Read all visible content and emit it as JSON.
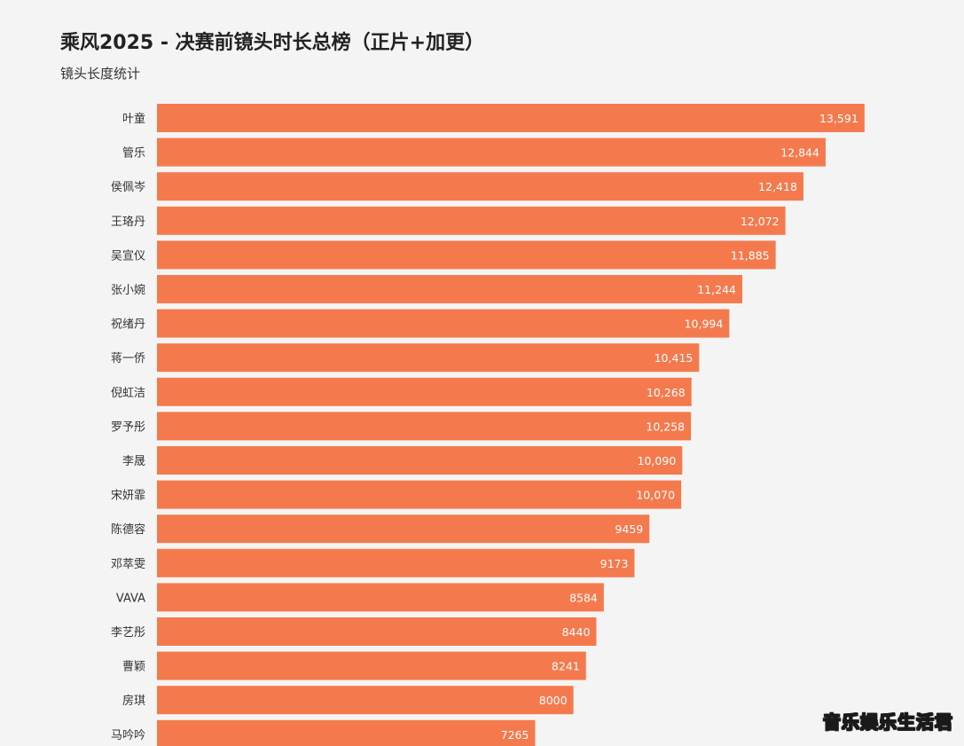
{
  "watermark_text": "音乐娱乐生活君",
  "chart_data": {
    "type": "bar",
    "orientation": "horizontal",
    "title": "乘风2025 - 决赛前镜头时长总榜（正片+加更）",
    "subtitle": "镜头长度统计",
    "bar_color": "#f47a4e",
    "categories": [
      "叶童",
      "管乐",
      "侯佩岑",
      "王珞丹",
      "吴宣仪",
      "张小婉",
      "祝绪丹",
      "蒋一侨",
      "倪虹洁",
      "罗予彤",
      "李晟",
      "宋妍霏",
      "陈德容",
      "邓萃雯",
      "VAVA",
      "李艺彤",
      "曹颖",
      "房琪",
      "马吟吟"
    ],
    "values": [
      13591,
      12844,
      12418,
      12072,
      11885,
      11244,
      10994,
      10415,
      10268,
      10258,
      10090,
      10070,
      9459,
      9173,
      8584,
      8440,
      8241,
      8000,
      7265
    ],
    "value_labels": [
      "13,591",
      "12,844",
      "12,418",
      "12,072",
      "11,885",
      "11,244",
      "10,994",
      "10,415",
      "10,268",
      "10,258",
      "10,090",
      "10,070",
      "9459",
      "9173",
      "8584",
      "8440",
      "8241",
      "8000",
      "7265"
    ],
    "grid": false,
    "legend": "none"
  }
}
